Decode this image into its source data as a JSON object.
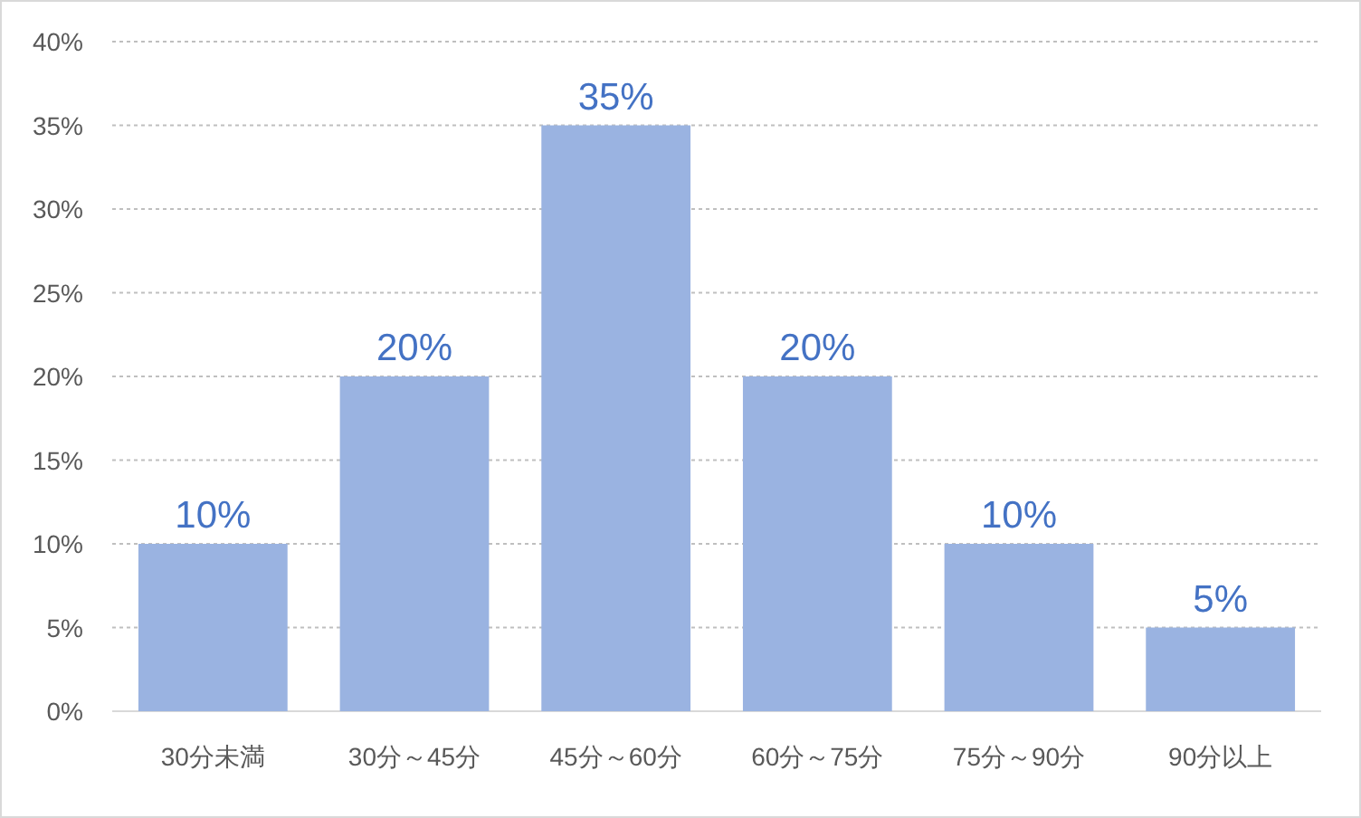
{
  "chart_data": {
    "type": "bar",
    "categories": [
      "30分未満",
      "30分～45分",
      "45分～60分",
      "60分～75分",
      "75分～90分",
      "90分以上"
    ],
    "values": [
      10,
      20,
      35,
      20,
      10,
      5
    ],
    "value_labels": [
      "10%",
      "20%",
      "35%",
      "20%",
      "10%",
      "5%"
    ],
    "color": "#9ab3e1",
    "ylim": [
      0,
      40
    ],
    "yticks": [
      {
        "value": 0,
        "label": "0%"
      },
      {
        "value": 5,
        "label": "5%"
      },
      {
        "value": 10,
        "label": "10%"
      },
      {
        "value": 15,
        "label": "15%"
      },
      {
        "value": 20,
        "label": "20%"
      },
      {
        "value": 25,
        "label": "25%"
      },
      {
        "value": 30,
        "label": "30%"
      },
      {
        "value": 35,
        "label": "35%"
      },
      {
        "value": 40,
        "label": "40%"
      }
    ],
    "grid": "y"
  }
}
